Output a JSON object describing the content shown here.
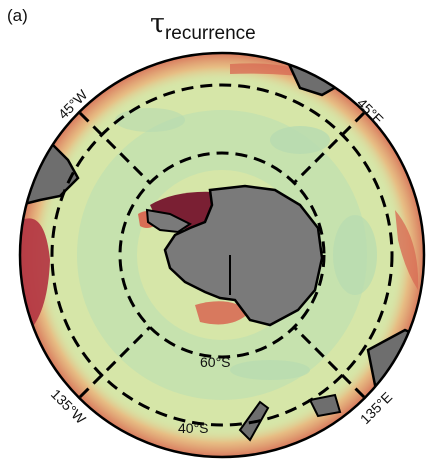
{
  "panel_label": "(a)",
  "title": {
    "symbol": "τ",
    "subscript": "recurrence"
  },
  "latitude_labels": {
    "lat60": "60°S",
    "lat40": "40°S"
  },
  "longitude_labels": {
    "w45": "45°W",
    "e45": "45°E",
    "w135": "135°W",
    "e135": "135°E"
  },
  "colors": {
    "background_field": "#d6e6a8",
    "low_band": "#b7ddb0",
    "high_value": "#7a1f33",
    "mid_high": "#d86d55",
    "mid": "#ecb078",
    "land": "#6e6e6e",
    "coast": "#000000"
  }
}
